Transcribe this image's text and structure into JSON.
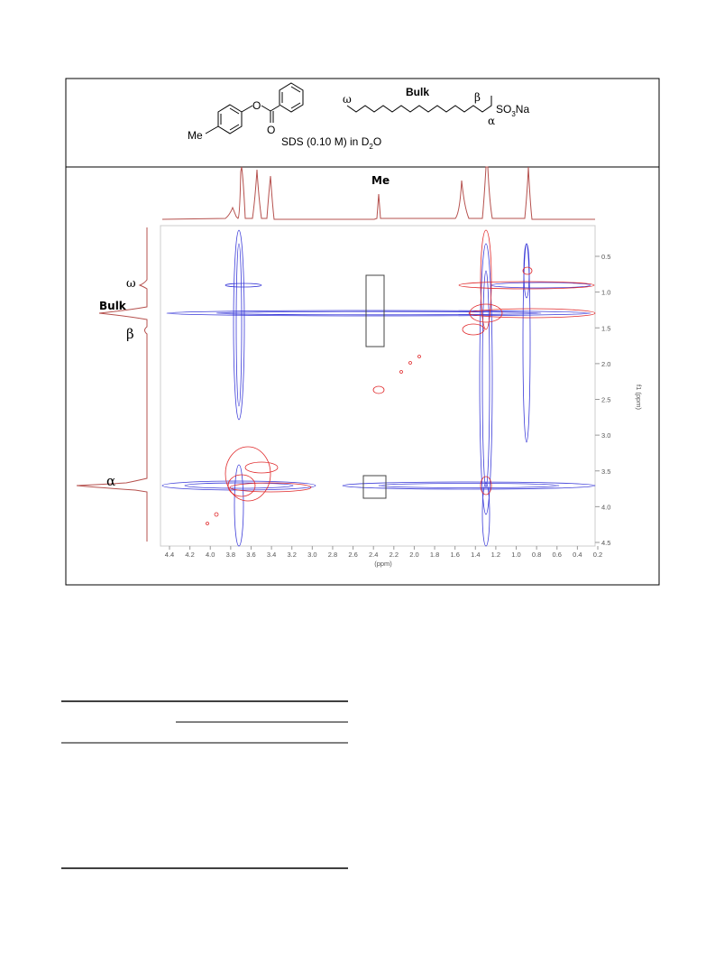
{
  "figure": {
    "molecule": {
      "me": "Me",
      "bulk": "Bulk",
      "omega": "ω",
      "beta": "β",
      "alpha": "α",
      "so": "SO",
      "so_sub": "3",
      "na": "Na",
      "caption": "SDS (0.10 M) in D",
      "caption_sub": "2",
      "caption_end": "O"
    },
    "spectrum": {
      "top_label": "Me",
      "left_labels": [
        "ω",
        "Bulk",
        "β",
        "α"
      ],
      "x_ticks": [
        "4.4",
        "4.2",
        "4.0",
        "3.8",
        "3.6",
        "3.4",
        "3.2",
        "3.0",
        "2.8",
        "2.6",
        "2.4",
        "2.2",
        "2.0",
        "1.8",
        "1.6",
        "1.4",
        "1.2",
        "1.0",
        "0.8",
        "0.6",
        "0.4",
        "0.2"
      ],
      "x_label": "(ppm)",
      "y_ticks": [
        "0.5",
        "1.0",
        "1.5",
        "2.0",
        "2.5",
        "3.0",
        "3.5",
        "4.0",
        "4.5"
      ],
      "y_label": "f1 (ppm)"
    }
  }
}
